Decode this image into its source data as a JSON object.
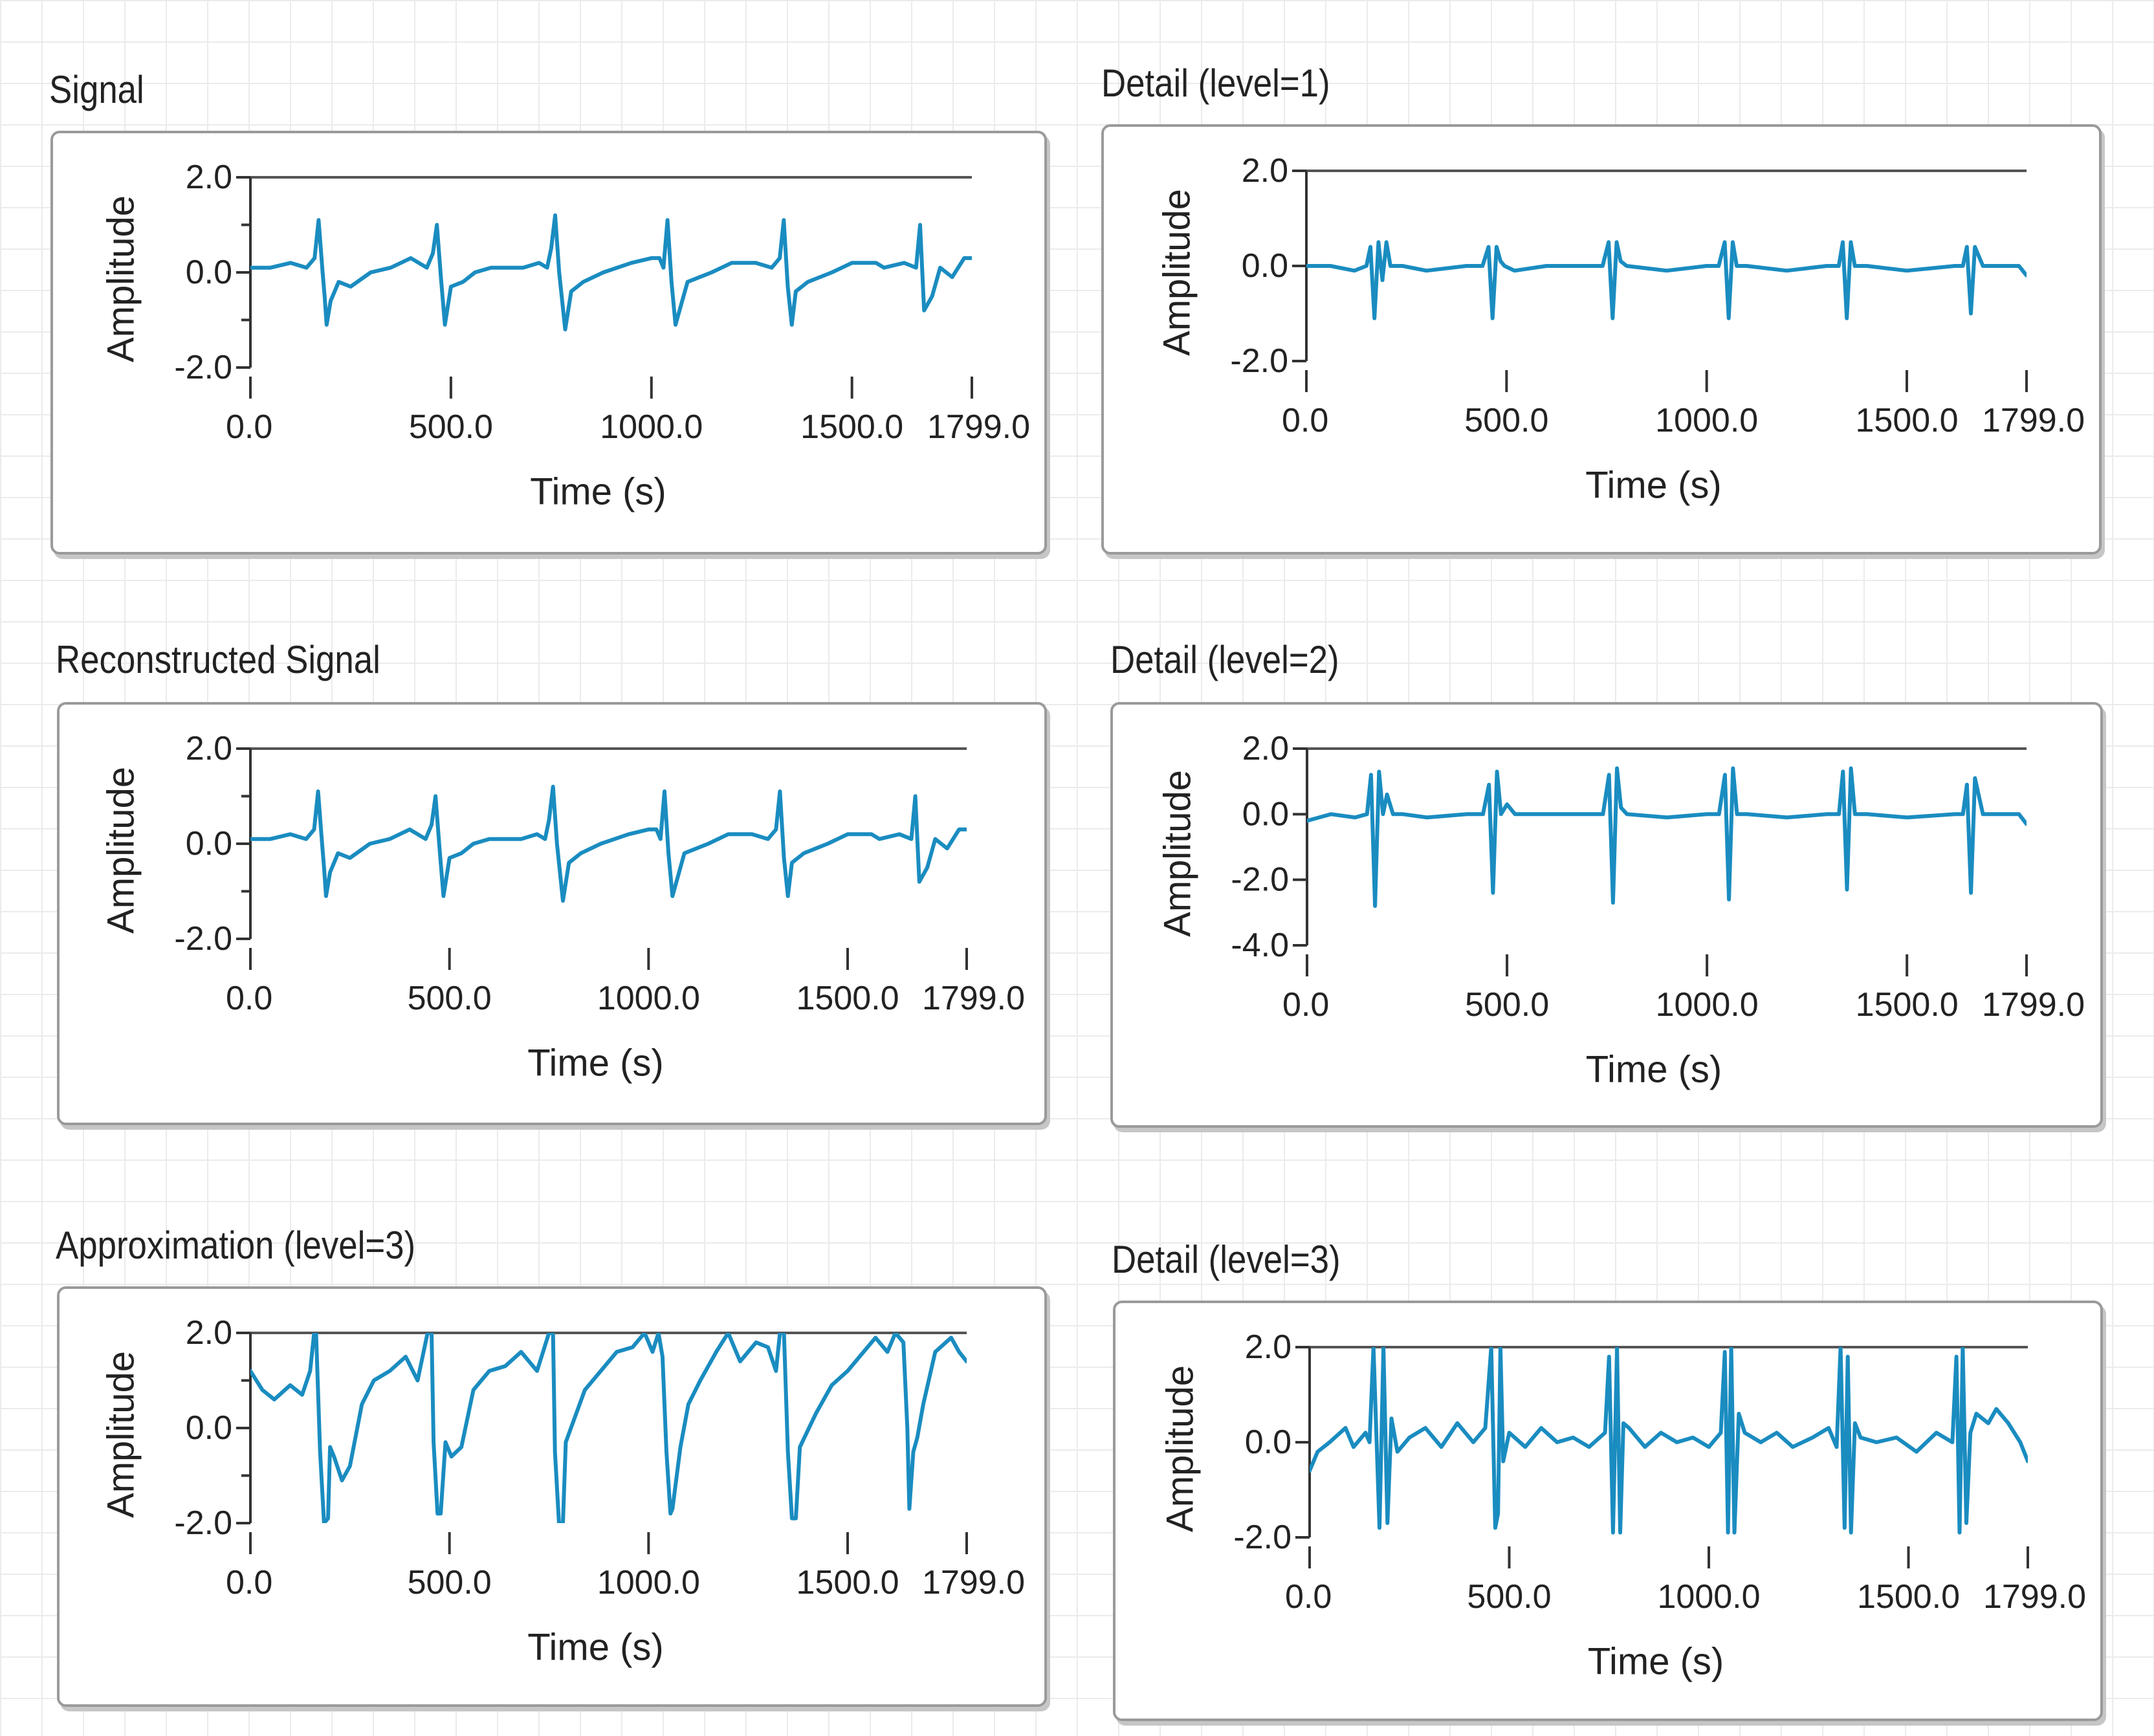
{
  "accent_color": "#1a8cc0",
  "chart_data": [
    {
      "id": "signal",
      "type": "line",
      "title": "Signal",
      "xlabel": "Time (s)",
      "ylabel": "Amplitude",
      "xlim": [
        0,
        1799
      ],
      "ylim": [
        -2,
        2
      ],
      "xticks": [
        0,
        500,
        1000,
        1500,
        1799
      ],
      "xtick_labels": [
        "0.0",
        "500.0",
        "1000.0",
        "1500.0",
        "1799.0"
      ],
      "yticks": [
        2,
        0,
        -2
      ],
      "ytick_labels": [
        "2.0",
        "0.0",
        "-2.0"
      ],
      "yminor_ticks": [
        1,
        -1
      ],
      "series": [
        {
          "name": "Signal",
          "x": [
            0,
            50,
            100,
            140,
            160,
            170,
            180,
            185,
            190,
            200,
            220,
            250,
            300,
            350,
            400,
            440,
            455,
            465,
            475,
            485,
            500,
            530,
            560,
            600,
            680,
            720,
            740,
            750,
            760,
            770,
            785,
            800,
            830,
            880,
            950,
            1000,
            1020,
            1030,
            1040,
            1050,
            1060,
            1090,
            1150,
            1200,
            1260,
            1300,
            1320,
            1330,
            1340,
            1350,
            1360,
            1390,
            1450,
            1500,
            1560,
            1580,
            1630,
            1660,
            1670,
            1680,
            1700,
            1720,
            1750,
            1780,
            1799
          ],
          "y": [
            0.1,
            0.1,
            0.2,
            0.1,
            0.3,
            1.1,
            0.0,
            -0.5,
            -1.1,
            -0.6,
            -0.2,
            -0.3,
            0.0,
            0.1,
            0.3,
            0.1,
            0.4,
            1.0,
            -0.1,
            -1.1,
            -0.3,
            -0.2,
            0.0,
            0.1,
            0.1,
            0.2,
            0.1,
            0.5,
            1.2,
            0.0,
            -1.2,
            -0.4,
            -0.2,
            0.0,
            0.2,
            0.3,
            0.3,
            0.1,
            1.1,
            -0.2,
            -1.1,
            -0.2,
            0.0,
            0.2,
            0.2,
            0.1,
            0.3,
            1.1,
            -0.3,
            -1.1,
            -0.4,
            -0.2,
            0.0,
            0.2,
            0.2,
            0.1,
            0.2,
            0.1,
            1.0,
            -0.8,
            -0.5,
            0.1,
            -0.1,
            0.3,
            0.3
          ]
        }
      ]
    },
    {
      "id": "detail1",
      "type": "line",
      "title": "Detail (level=1)",
      "xlabel": "Time (s)",
      "ylabel": "Amplitude",
      "xlim": [
        0,
        1799
      ],
      "ylim": [
        -2,
        2
      ],
      "xticks": [
        0,
        500,
        1000,
        1500,
        1799
      ],
      "xtick_labels": [
        "0.0",
        "500.0",
        "1000.0",
        "1500.0",
        "1799.0"
      ],
      "yticks": [
        2,
        0,
        -2
      ],
      "ytick_labels": [
        "2.0",
        "0.0",
        "-2.0"
      ],
      "yminor_ticks": [],
      "series": [
        {
          "name": "Detail 1",
          "x": [
            0,
            60,
            120,
            150,
            160,
            170,
            180,
            190,
            200,
            210,
            240,
            300,
            400,
            440,
            455,
            465,
            475,
            485,
            495,
            520,
            600,
            700,
            740,
            755,
            765,
            775,
            785,
            800,
            900,
            1000,
            1030,
            1045,
            1055,
            1065,
            1075,
            1100,
            1200,
            1300,
            1330,
            1340,
            1350,
            1360,
            1370,
            1400,
            1500,
            1620,
            1640,
            1650,
            1660,
            1670,
            1690,
            1750,
            1780,
            1799
          ],
          "y": [
            0.0,
            0.0,
            -0.1,
            0.0,
            0.4,
            -1.1,
            0.5,
            -0.3,
            0.5,
            0.0,
            0.0,
            -0.1,
            0.0,
            0.0,
            0.4,
            -1.1,
            0.4,
            0.1,
            0.0,
            -0.1,
            0.0,
            0.0,
            0.0,
            0.5,
            -1.1,
            0.5,
            0.1,
            0.0,
            -0.1,
            0.0,
            0.0,
            0.5,
            -1.1,
            0.5,
            0.0,
            0.0,
            -0.1,
            0.0,
            0.0,
            0.5,
            -1.1,
            0.5,
            0.0,
            0.0,
            -0.1,
            0.0,
            0.0,
            0.4,
            -1.0,
            0.4,
            0.0,
            0.0,
            0.0,
            -0.2
          ]
        }
      ]
    },
    {
      "id": "reconstructed",
      "type": "line",
      "title": "Reconstructed Signal",
      "xlabel": "Time (s)",
      "ylabel": "Amplitude",
      "xlim": [
        0,
        1799
      ],
      "ylim": [
        -2,
        2
      ],
      "xticks": [
        0,
        500,
        1000,
        1500,
        1799
      ],
      "xtick_labels": [
        "0.0",
        "500.0",
        "1000.0",
        "1500.0",
        "1799.0"
      ],
      "yticks": [
        2,
        0,
        -2
      ],
      "ytick_labels": [
        "2.0",
        "0.0",
        "-2.0"
      ],
      "yminor_ticks": [
        1,
        -1
      ],
      "series": [
        {
          "name": "Reconstructed",
          "x": [
            0,
            50,
            100,
            140,
            160,
            170,
            180,
            185,
            190,
            200,
            220,
            250,
            300,
            350,
            400,
            440,
            455,
            465,
            475,
            485,
            500,
            530,
            560,
            600,
            680,
            720,
            740,
            750,
            760,
            770,
            785,
            800,
            830,
            880,
            950,
            1000,
            1020,
            1030,
            1040,
            1050,
            1060,
            1090,
            1150,
            1200,
            1260,
            1300,
            1320,
            1330,
            1340,
            1350,
            1360,
            1390,
            1450,
            1500,
            1560,
            1580,
            1630,
            1660,
            1670,
            1680,
            1700,
            1720,
            1750,
            1780,
            1799
          ],
          "y": [
            0.1,
            0.1,
            0.2,
            0.1,
            0.3,
            1.1,
            0.0,
            -0.5,
            -1.1,
            -0.6,
            -0.2,
            -0.3,
            0.0,
            0.1,
            0.3,
            0.1,
            0.4,
            1.0,
            -0.1,
            -1.1,
            -0.3,
            -0.2,
            0.0,
            0.1,
            0.1,
            0.2,
            0.1,
            0.5,
            1.2,
            0.0,
            -1.2,
            -0.4,
            -0.2,
            0.0,
            0.2,
            0.3,
            0.3,
            0.1,
            1.1,
            -0.2,
            -1.1,
            -0.2,
            0.0,
            0.2,
            0.2,
            0.1,
            0.3,
            1.1,
            -0.3,
            -1.1,
            -0.4,
            -0.2,
            0.0,
            0.2,
            0.2,
            0.1,
            0.2,
            0.1,
            1.0,
            -0.8,
            -0.5,
            0.1,
            -0.1,
            0.3,
            0.3
          ]
        }
      ]
    },
    {
      "id": "detail2",
      "type": "line",
      "title": "Detail (level=2)",
      "xlabel": "Time (s)",
      "ylabel": "Amplitude",
      "xlim": [
        0,
        1799
      ],
      "ylim": [
        -4,
        2
      ],
      "xticks": [
        0,
        500,
        1000,
        1500,
        1799
      ],
      "xtick_labels": [
        "0.0",
        "500.0",
        "1000.0",
        "1500.0",
        "1799.0"
      ],
      "yticks": [
        2,
        0,
        -2,
        -4
      ],
      "ytick_labels": [
        "2.0",
        "0.0",
        "-2.0",
        "-4.0"
      ],
      "yminor_ticks": [],
      "series": [
        {
          "name": "Detail 2",
          "x": [
            0,
            60,
            120,
            150,
            160,
            170,
            180,
            190,
            200,
            215,
            240,
            300,
            400,
            440,
            455,
            465,
            475,
            485,
            500,
            520,
            600,
            700,
            740,
            755,
            765,
            775,
            785,
            800,
            900,
            1000,
            1030,
            1045,
            1055,
            1065,
            1075,
            1100,
            1200,
            1300,
            1330,
            1340,
            1350,
            1360,
            1370,
            1400,
            1500,
            1620,
            1640,
            1650,
            1660,
            1670,
            1690,
            1750,
            1780,
            1799
          ],
          "y": [
            -0.2,
            0.0,
            -0.1,
            0.0,
            1.2,
            -2.8,
            1.3,
            0.0,
            0.6,
            0.0,
            0.0,
            -0.1,
            0.0,
            0.0,
            0.9,
            -2.4,
            1.3,
            0.0,
            0.3,
            0.0,
            0.0,
            0.0,
            0.0,
            1.2,
            -2.7,
            1.4,
            0.2,
            0.0,
            -0.1,
            0.0,
            0.0,
            1.2,
            -2.6,
            1.4,
            0.0,
            0.0,
            -0.1,
            0.0,
            0.0,
            1.3,
            -2.3,
            1.4,
            0.0,
            0.0,
            -0.1,
            0.0,
            0.0,
            0.9,
            -2.4,
            1.1,
            0.0,
            0.0,
            0.0,
            -0.3
          ]
        }
      ]
    },
    {
      "id": "approx3",
      "type": "line",
      "title": "Approximation (level=3)",
      "xlabel": "Time (s)",
      "ylabel": "Amplitude",
      "xlim": [
        0,
        1799
      ],
      "ylim": [
        -2,
        2
      ],
      "xticks": [
        0,
        500,
        1000,
        1500,
        1799
      ],
      "xtick_labels": [
        "0.0",
        "500.0",
        "1000.0",
        "1500.0",
        "1799.0"
      ],
      "yticks": [
        2,
        0,
        -2
      ],
      "ytick_labels": [
        "2.0",
        "0.0",
        "-2.0"
      ],
      "yminor_ticks": [
        1,
        -1
      ],
      "series": [
        {
          "name": "Approximation 3",
          "x": [
            0,
            30,
            60,
            100,
            130,
            150,
            160,
            165,
            175,
            185,
            195,
            200,
            210,
            230,
            250,
            280,
            310,
            350,
            390,
            420,
            445,
            455,
            460,
            470,
            478,
            490,
            505,
            530,
            560,
            600,
            640,
            680,
            720,
            750,
            760,
            765,
            775,
            785,
            792,
            805,
            840,
            880,
            920,
            960,
            990,
            1010,
            1025,
            1035,
            1045,
            1055,
            1060,
            1080,
            1100,
            1130,
            1170,
            1200,
            1230,
            1270,
            1300,
            1320,
            1330,
            1340,
            1350,
            1360,
            1370,
            1380,
            1420,
            1460,
            1500,
            1540,
            1570,
            1600,
            1620,
            1640,
            1650,
            1655,
            1665,
            1675,
            1690,
            1720,
            1760,
            1780,
            1799
          ],
          "y": [
            1.2,
            0.8,
            0.6,
            0.9,
            0.7,
            1.2,
            2.0,
            2.0,
            -0.5,
            -2.0,
            -1.9,
            -0.4,
            -0.6,
            -1.1,
            -0.8,
            0.5,
            1.0,
            1.2,
            1.5,
            1.0,
            2.0,
            2.0,
            -0.3,
            -1.8,
            -1.8,
            -0.3,
            -0.6,
            -0.4,
            0.8,
            1.2,
            1.3,
            1.6,
            1.2,
            2.0,
            2.0,
            -0.5,
            -2.0,
            -2.0,
            -0.3,
            0.0,
            0.8,
            1.2,
            1.6,
            1.7,
            2.0,
            1.6,
            2.0,
            1.5,
            -0.5,
            -1.8,
            -1.7,
            -0.4,
            0.5,
            1.0,
            1.6,
            2.0,
            1.4,
            1.8,
            1.7,
            1.2,
            2.0,
            2.0,
            -0.5,
            -1.9,
            -1.9,
            -0.4,
            0.3,
            0.9,
            1.2,
            1.6,
            1.9,
            1.6,
            2.0,
            1.8,
            0.0,
            -1.7,
            -0.5,
            -0.2,
            0.5,
            1.6,
            1.9,
            1.6,
            1.4
          ]
        }
      ]
    },
    {
      "id": "detail3",
      "type": "line",
      "title": "Detail (level=3)",
      "xlabel": "Time (s)",
      "ylabel": "Amplitude",
      "xlim": [
        0,
        1799
      ],
      "ylim": [
        -2,
        2
      ],
      "xticks": [
        0,
        500,
        1000,
        1500,
        1799
      ],
      "xtick_labels": [
        "0.0",
        "500.0",
        "1000.0",
        "1500.0",
        "1799.0"
      ],
      "yticks": [
        2,
        0,
        -2
      ],
      "ytick_labels": [
        "2.0",
        "0.0",
        "-2.0"
      ],
      "yminor_ticks": [],
      "series": [
        {
          "name": "Detail 3",
          "x": [
            0,
            20,
            50,
            90,
            110,
            140,
            150,
            160,
            175,
            185,
            195,
            205,
            220,
            250,
            290,
            330,
            370,
            410,
            440,
            455,
            465,
            472,
            478,
            485,
            500,
            540,
            580,
            620,
            660,
            700,
            740,
            750,
            760,
            770,
            778,
            786,
            800,
            840,
            880,
            920,
            960,
            1000,
            1030,
            1040,
            1048,
            1056,
            1064,
            1075,
            1090,
            1130,
            1170,
            1210,
            1260,
            1300,
            1320,
            1330,
            1340,
            1348,
            1356,
            1366,
            1380,
            1420,
            1470,
            1520,
            1570,
            1610,
            1620,
            1628,
            1636,
            1645,
            1655,
            1670,
            1700,
            1720,
            1750,
            1780,
            1799
          ],
          "y": [
            -0.6,
            -0.2,
            0.0,
            0.3,
            -0.1,
            0.2,
            0.0,
            2.0,
            -1.8,
            2.0,
            -1.7,
            0.5,
            -0.2,
            0.1,
            0.3,
            -0.1,
            0.4,
            0.0,
            0.3,
            2.0,
            -1.8,
            -1.5,
            2.0,
            -0.4,
            0.2,
            -0.1,
            0.3,
            0.0,
            0.1,
            -0.1,
            0.2,
            1.8,
            -1.9,
            2.0,
            -1.9,
            0.4,
            0.3,
            -0.1,
            0.2,
            0.0,
            0.1,
            -0.1,
            0.2,
            1.9,
            -1.9,
            2.0,
            -1.9,
            0.6,
            0.2,
            0.0,
            0.2,
            -0.1,
            0.1,
            0.3,
            -0.1,
            2.0,
            -1.8,
            1.8,
            -1.9,
            0.4,
            0.1,
            0.0,
            0.1,
            -0.2,
            0.2,
            0.0,
            1.8,
            -1.9,
            2.0,
            -1.7,
            0.2,
            0.6,
            0.4,
            0.7,
            0.4,
            0.0,
            -0.4
          ]
        }
      ]
    }
  ]
}
